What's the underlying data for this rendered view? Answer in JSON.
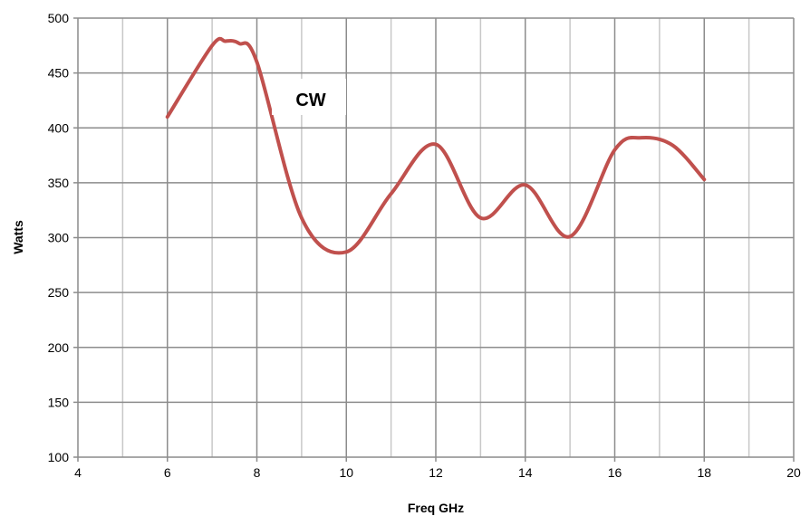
{
  "chart_data": {
    "type": "line",
    "title": "",
    "xlabel": "Freq GHz",
    "ylabel": "Watts",
    "xlim": [
      4,
      20
    ],
    "ylim": [
      100,
      500
    ],
    "x_ticks": [
      4,
      6,
      8,
      10,
      12,
      14,
      16,
      18,
      20
    ],
    "y_ticks": [
      100,
      150,
      200,
      250,
      300,
      350,
      400,
      450,
      500
    ],
    "grid": "major and minor on both axes",
    "legend": "none",
    "annotation": "CW",
    "series": [
      {
        "color": "#c0504d",
        "x": [
          6,
          7,
          7.3,
          7.6,
          8,
          9,
          10,
          11,
          12,
          13,
          14,
          15,
          16,
          16.6,
          17.3,
          18
        ],
        "y": [
          410,
          475,
          479,
          477,
          460,
          318,
          287,
          340,
          385,
          318,
          348,
          301,
          380,
          391,
          384,
          353
        ]
      }
    ]
  }
}
